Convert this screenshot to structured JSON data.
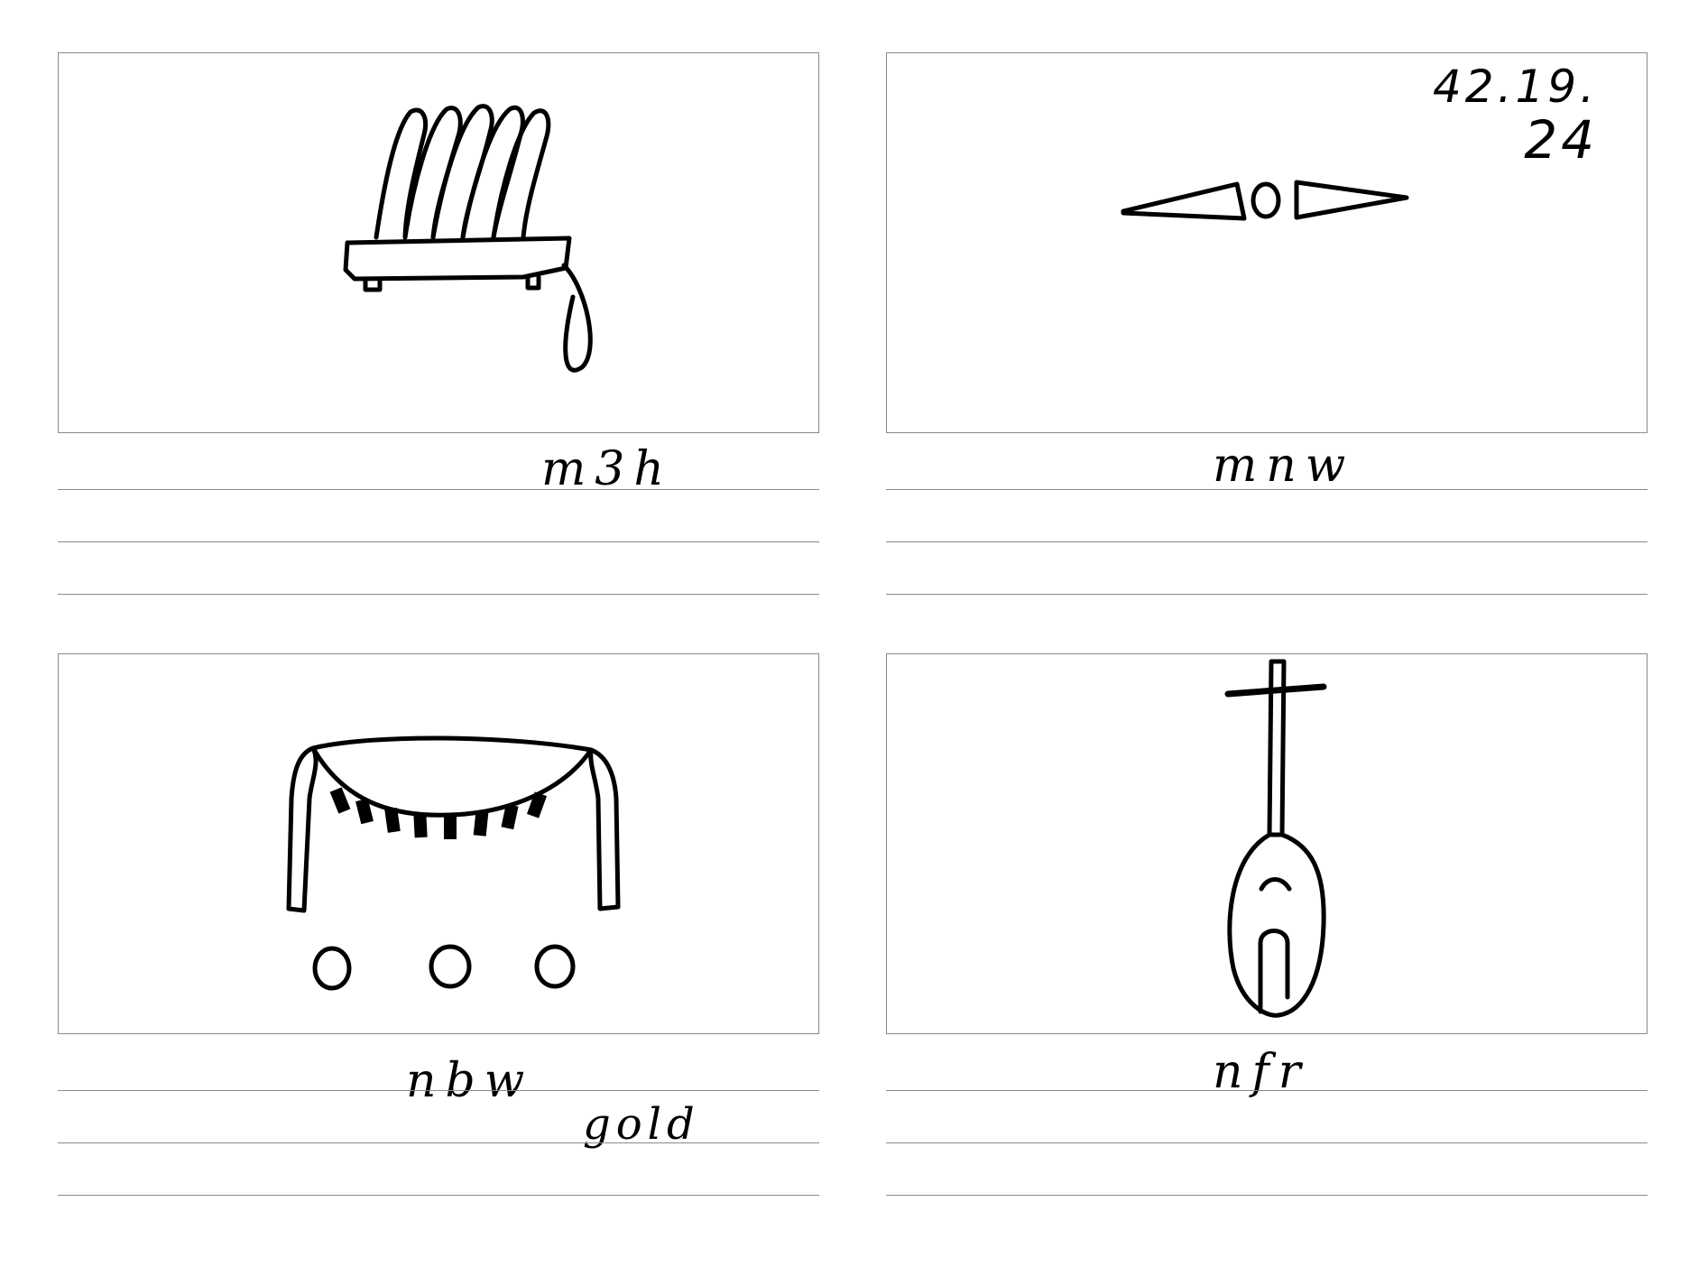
{
  "cards": [
    {
      "id": "card-1",
      "glyph_icon": "fan-glyph-icon",
      "transliteration": "m3h",
      "note": ""
    },
    {
      "id": "card-2",
      "glyph_icon": "monument-glyph-icon",
      "transliteration": "mnw",
      "numbering_line1": "42.19.",
      "numbering_line2": "24",
      "note": ""
    },
    {
      "id": "card-3",
      "glyph_icon": "collar-glyph-icon",
      "transliteration": "nbw",
      "note": "gold"
    },
    {
      "id": "card-4",
      "glyph_icon": "lute-glyph-icon",
      "transliteration": "nfr",
      "note": ""
    }
  ],
  "colors": {
    "ink": "#000000",
    "rule": "#8a8a8a",
    "paper": "#ffffff"
  }
}
